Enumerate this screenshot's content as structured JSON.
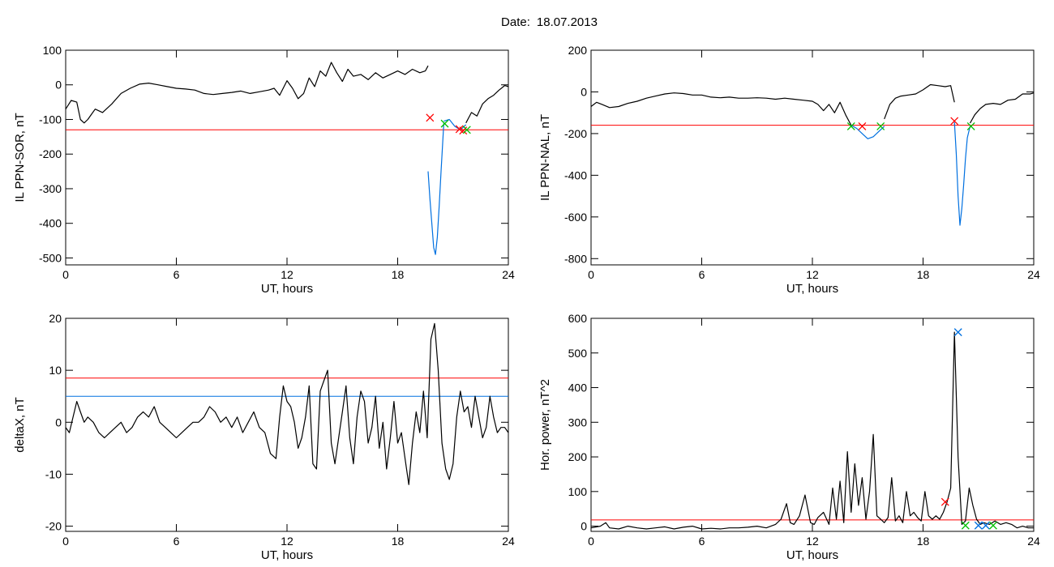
{
  "header": {
    "date_label": "Date:",
    "date_value": "18.07.2013"
  },
  "colors": {
    "black": "#000000",
    "red": "#ff0000",
    "blue": "#0070e0",
    "green": "#00c000"
  },
  "chart_data": [
    {
      "type": "line",
      "xlabel": "UT, hours",
      "ylabel": "IL PPN-SOR, nT",
      "xlim": [
        0,
        24
      ],
      "ylim": [
        -520,
        100
      ],
      "xticks": [
        0,
        6,
        12,
        18,
        24
      ],
      "yticks": [
        100,
        0,
        -100,
        -200,
        -300,
        -400,
        -500
      ],
      "threshold": -130,
      "series": [
        {
          "color": "#000000",
          "x": [
            0,
            0.3,
            0.6,
            0.8,
            1.0,
            1.2,
            1.4,
            1.6,
            2.0,
            2.5,
            3.0,
            3.5,
            4.0,
            4.5,
            5.0,
            5.5,
            6.0,
            6.5,
            7.0,
            7.5,
            8.0,
            8.5,
            9.0,
            9.5,
            10.0,
            10.5,
            11.0,
            11.3,
            11.6,
            12.0,
            12.3,
            12.6,
            12.9,
            13.2,
            13.5,
            13.8,
            14.1,
            14.4,
            14.7,
            15.0,
            15.3,
            15.6,
            16.0,
            16.4,
            16.8,
            17.2,
            17.6,
            18.0,
            18.4,
            18.8,
            19.2,
            19.5,
            19.65
          ],
          "y": [
            -70,
            -45,
            -50,
            -100,
            -110,
            -100,
            -85,
            -70,
            -80,
            -55,
            -25,
            -10,
            2,
            5,
            0,
            -5,
            -10,
            -12,
            -15,
            -25,
            -28,
            -25,
            -22,
            -18,
            -25,
            -20,
            -15,
            -10,
            -30,
            12,
            -10,
            -40,
            -25,
            20,
            -5,
            40,
            25,
            65,
            35,
            10,
            45,
            25,
            30,
            15,
            35,
            20,
            30,
            40,
            30,
            45,
            35,
            40,
            55
          ]
        },
        {
          "color": "#0070e0",
          "x": [
            19.65,
            19.75,
            19.85,
            19.95,
            20.05,
            20.15,
            20.25,
            20.35,
            20.5
          ],
          "y": [
            -250,
            -330,
            -400,
            -470,
            -490,
            -440,
            -350,
            -250,
            -110
          ]
        },
        {
          "color": "#0070e0",
          "x": [
            20.5,
            20.8,
            21.1,
            21.4,
            21.7
          ],
          "y": [
            -105,
            -100,
            -120,
            -130,
            -115
          ]
        },
        {
          "color": "#000000",
          "x": [
            21.7,
            22.0,
            22.3,
            22.6,
            22.9,
            23.2,
            23.5,
            23.8,
            24.0
          ],
          "y": [
            -110,
            -80,
            -90,
            -55,
            -40,
            -30,
            -15,
            -2,
            -5
          ]
        }
      ],
      "markers": [
        {
          "x": 19.75,
          "y": -95,
          "color": "#ff0000"
        },
        {
          "x": 20.55,
          "y": -112,
          "color": "#00c000"
        },
        {
          "x": 21.35,
          "y": -128,
          "color": "#ff0000"
        },
        {
          "x": 21.55,
          "y": -132,
          "color": "#ff0000"
        },
        {
          "x": 21.75,
          "y": -130,
          "color": "#00c000"
        }
      ]
    },
    {
      "type": "line",
      "xlabel": "UT, hours",
      "ylabel": "IL PPN-NAL, nT",
      "xlim": [
        0,
        24
      ],
      "ylim": [
        -830,
        200
      ],
      "xticks": [
        0,
        6,
        12,
        18,
        24
      ],
      "yticks": [
        200,
        0,
        -200,
        -400,
        -600,
        -800
      ],
      "threshold": -160,
      "series": [
        {
          "color": "#000000",
          "x": [
            0,
            0.3,
            0.6,
            1.0,
            1.5,
            2.0,
            2.5,
            3.0,
            3.5,
            4.0,
            4.5,
            5.0,
            5.5,
            6.0,
            6.5,
            7.0,
            7.5,
            8.0,
            8.5,
            9.0,
            9.5,
            10.0,
            10.5,
            11.0,
            11.5,
            12.0,
            12.3,
            12.6,
            12.9,
            13.2,
            13.5,
            13.8,
            14.1
          ],
          "y": [
            -70,
            -50,
            -60,
            -75,
            -70,
            -55,
            -45,
            -30,
            -20,
            -10,
            -5,
            -8,
            -15,
            -15,
            -25,
            -28,
            -25,
            -30,
            -30,
            -28,
            -30,
            -35,
            -30,
            -35,
            -40,
            -45,
            -60,
            -90,
            -60,
            -100,
            -50,
            -110,
            -160
          ]
        },
        {
          "color": "#0070e0",
          "x": [
            14.1,
            14.4,
            14.7,
            15.0,
            15.3,
            15.6,
            15.9
          ],
          "y": [
            -160,
            -175,
            -200,
            -225,
            -215,
            -190,
            -165
          ]
        },
        {
          "color": "#000000",
          "x": [
            15.9,
            16.2,
            16.5,
            16.8,
            17.2,
            17.6,
            18.0,
            18.4,
            18.8,
            19.2,
            19.5,
            19.7
          ],
          "y": [
            -130,
            -60,
            -30,
            -20,
            -15,
            -10,
            10,
            35,
            30,
            25,
            30,
            -50
          ]
        },
        {
          "color": "#0070e0",
          "x": [
            19.7,
            19.8,
            19.9,
            20.0,
            20.1,
            20.2,
            20.3,
            20.4,
            20.55
          ],
          "y": [
            -145,
            -300,
            -500,
            -640,
            -560,
            -450,
            -320,
            -220,
            -165
          ]
        },
        {
          "color": "#000000",
          "x": [
            20.55,
            20.8,
            21.1,
            21.4,
            21.8,
            22.2,
            22.6,
            23.0,
            23.4,
            23.8,
            24.0
          ],
          "y": [
            -150,
            -110,
            -80,
            -60,
            -55,
            -60,
            -40,
            -35,
            -10,
            -10,
            -5
          ]
        }
      ],
      "markers": [
        {
          "x": 14.1,
          "y": -165,
          "color": "#00c000"
        },
        {
          "x": 14.7,
          "y": -165,
          "color": "#ff0000"
        },
        {
          "x": 15.7,
          "y": -165,
          "color": "#00c000"
        },
        {
          "x": 19.7,
          "y": -140,
          "color": "#ff0000"
        },
        {
          "x": 20.6,
          "y": -165,
          "color": "#00c000"
        }
      ]
    },
    {
      "type": "line",
      "xlabel": "UT, hours",
      "ylabel": "deltaX, nT",
      "xlim": [
        0,
        24
      ],
      "ylim": [
        -21,
        20
      ],
      "xticks": [
        0,
        6,
        12,
        18,
        24
      ],
      "yticks": [
        20,
        10,
        0,
        -10,
        -20
      ],
      "threshold": 8.5,
      "threshold2": 5,
      "series": [
        {
          "color": "#000000",
          "x": [
            0,
            0.2,
            0.4,
            0.6,
            0.8,
            1.0,
            1.2,
            1.5,
            1.8,
            2.1,
            2.4,
            2.7,
            3.0,
            3.3,
            3.6,
            3.9,
            4.2,
            4.5,
            4.8,
            5.1,
            5.4,
            5.7,
            6.0,
            6.3,
            6.6,
            6.9,
            7.2,
            7.5,
            7.8,
            8.1,
            8.4,
            8.7,
            9.0,
            9.3,
            9.6,
            9.9,
            10.2,
            10.5,
            10.8,
            11.1,
            11.4,
            11.6,
            11.8,
            12.0,
            12.2,
            12.4,
            12.6,
            12.8,
            13.0,
            13.2,
            13.4,
            13.6,
            13.8,
            14.0,
            14.2,
            14.4,
            14.6,
            14.8,
            15.0,
            15.2,
            15.4,
            15.6,
            15.8,
            16.0,
            16.2,
            16.4,
            16.6,
            16.8,
            17.0,
            17.2,
            17.4,
            17.6,
            17.8,
            18.0,
            18.2,
            18.4,
            18.6,
            18.8,
            19.0,
            19.2,
            19.4,
            19.6,
            19.8,
            20.0,
            20.2,
            20.4,
            20.6,
            20.8,
            21.0,
            21.2,
            21.4,
            21.6,
            21.8,
            22.0,
            22.2,
            22.4,
            22.6,
            22.8,
            23.0,
            23.2,
            23.4,
            23.6,
            23.8,
            24.0
          ],
          "y": [
            -1,
            -2,
            1,
            4,
            2,
            0,
            1,
            0,
            -2,
            -3,
            -2,
            -1,
            0,
            -2,
            -1,
            1,
            2,
            1,
            3,
            0,
            -1,
            -2,
            -3,
            -2,
            -1,
            0,
            0,
            1,
            3,
            2,
            0,
            1,
            -1,
            1,
            -2,
            0,
            2,
            -1,
            -2,
            -6,
            -7,
            1,
            7,
            4,
            3,
            0,
            -5,
            -3,
            1,
            7,
            -8,
            -9,
            6,
            8,
            10,
            -4,
            -8,
            -3,
            2,
            7,
            -3,
            -8,
            1,
            6,
            4,
            -4,
            -1,
            5,
            -5,
            0,
            -9,
            -3,
            4,
            -4,
            -2,
            -7,
            -12,
            -4,
            2,
            -2,
            6,
            -3,
            16,
            19,
            10,
            -4,
            -9,
            -11,
            -8,
            1,
            6,
            2,
            3,
            -1,
            5,
            1,
            -3,
            -1,
            5,
            1,
            -2,
            -1,
            -1,
            -2
          ]
        }
      ],
      "markers": []
    },
    {
      "type": "line",
      "xlabel": "UT, hours",
      "ylabel": "Hor. power, nT^2",
      "xlim": [
        0,
        24
      ],
      "ylim": [
        -15,
        600
      ],
      "xticks": [
        0,
        6,
        12,
        18,
        24
      ],
      "yticks": [
        600,
        500,
        400,
        300,
        200,
        100,
        0
      ],
      "threshold": 18,
      "series": [
        {
          "color": "#000000",
          "x": [
            0,
            0.5,
            0.8,
            1.0,
            1.5,
            2.0,
            2.5,
            3.0,
            3.5,
            4.0,
            4.5,
            5.0,
            5.5,
            6.0,
            6.5,
            7.0,
            7.5,
            8.0,
            8.5,
            9.0,
            9.5,
            10.0,
            10.3,
            10.6,
            10.8,
            11.0,
            11.3,
            11.6,
            11.9,
            12.1,
            12.3,
            12.6,
            12.9,
            13.1,
            13.3,
            13.5,
            13.7,
            13.9,
            14.1,
            14.3,
            14.5,
            14.7,
            14.9,
            15.1,
            15.3,
            15.5,
            15.7,
            15.9,
            16.1,
            16.3,
            16.5,
            16.7,
            16.9,
            17.1,
            17.3,
            17.5,
            17.7,
            17.9,
            18.1,
            18.3,
            18.5,
            18.7,
            18.9,
            19.1,
            19.3,
            19.5,
            19.7,
            19.9,
            20.1,
            20.3,
            20.5,
            20.7,
            20.9,
            21.1,
            21.3,
            21.6,
            21.9,
            22.2,
            22.5,
            22.8,
            23.1,
            23.4,
            23.7,
            24.0
          ],
          "y": [
            -5,
            0,
            10,
            -5,
            -8,
            0,
            -5,
            -8,
            -5,
            -2,
            -8,
            -3,
            0,
            -8,
            -6,
            -8,
            -5,
            -5,
            -3,
            0,
            -5,
            5,
            20,
            65,
            10,
            5,
            30,
            90,
            10,
            5,
            25,
            40,
            5,
            110,
            20,
            130,
            10,
            215,
            40,
            180,
            60,
            140,
            20,
            100,
            265,
            30,
            20,
            10,
            25,
            140,
            15,
            30,
            10,
            100,
            30,
            40,
            25,
            15,
            100,
            30,
            20,
            30,
            20,
            40,
            70,
            110,
            560,
            200,
            5,
            15,
            110,
            60,
            20,
            5,
            10,
            5,
            15,
            5,
            10,
            5,
            -5,
            0,
            -5,
            -5
          ]
        }
      ],
      "markers": [
        {
          "x": 19.9,
          "y": 560,
          "color": "#0070e0"
        },
        {
          "x": 19.2,
          "y": 70,
          "color": "#ff0000"
        },
        {
          "x": 20.3,
          "y": 2,
          "color": "#00c000"
        },
        {
          "x": 21.0,
          "y": 2,
          "color": "#0070e0"
        },
        {
          "x": 21.4,
          "y": 2,
          "color": "#0070e0"
        },
        {
          "x": 21.8,
          "y": 2,
          "color": "#00c000"
        }
      ]
    }
  ]
}
